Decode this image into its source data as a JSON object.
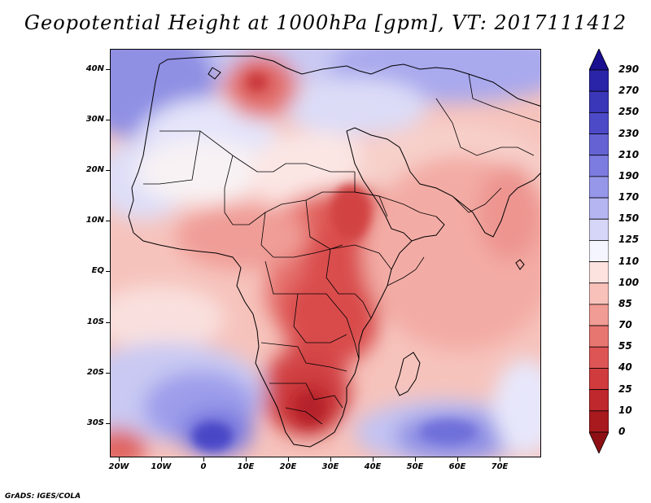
{
  "title": "Geopotential Height at 1000hPa [gpm], VT: 2017111412",
  "map": {
    "lat_labels": [
      "40N",
      "30N",
      "20N",
      "10N",
      "EQ",
      "10S",
      "20S",
      "30S"
    ],
    "lon_labels": [
      "20W",
      "10W",
      "0",
      "10E",
      "20E",
      "30E",
      "40E",
      "50E",
      "60E",
      "70E"
    ],
    "lat_range": [
      -36,
      44
    ],
    "lon_range": [
      -22,
      80
    ]
  },
  "colorbar": {
    "levels": [
      "290",
      "270",
      "250",
      "230",
      "210",
      "190",
      "170",
      "150",
      "125",
      "110",
      "100",
      "85",
      "70",
      "55",
      "40",
      "25",
      "10",
      "0"
    ],
    "colors": [
      "#1a0f8f",
      "#2a24a8",
      "#3b37b9",
      "#4d4ac8",
      "#6563d4",
      "#7c7be0",
      "#9797ea",
      "#b5b5f2",
      "#d6d6f8",
      "#f5f5ff",
      "#fde3df",
      "#f8c2bb",
      "#f19c94",
      "#e87670",
      "#de5555",
      "#d03b3e",
      "#bf282c",
      "#a81a1e",
      "#8e1014"
    ]
  },
  "credit": "GrADS: IGES/COLA"
}
